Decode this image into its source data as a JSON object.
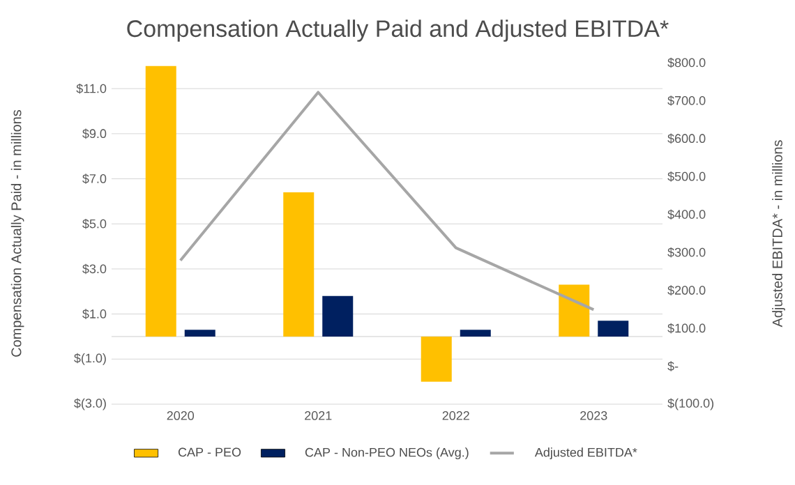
{
  "chart_data": {
    "type": "bar",
    "title": "Compensation Actually Paid and Adjusted EBITDA*",
    "ylabel": "Compensation  Actually Paid - in millions",
    "y2label": "Adjusted EBITDA* - in millions",
    "categories": [
      "2020",
      "2021",
      "2022",
      "2023"
    ],
    "series": [
      {
        "name": "CAP - PEO",
        "type": "bar",
        "color": "#ffc000",
        "values": [
          12.0,
          6.4,
          -2.0,
          2.3
        ]
      },
      {
        "name": "CAP - Non-PEO NEOs (Avg.)",
        "type": "bar",
        "color": "#002060",
        "values": [
          0.3,
          1.8,
          0.3,
          0.7
        ]
      },
      {
        "name": "Adjusted EBITDA*",
        "type": "line",
        "axis": "y2",
        "color": "#a6a6a6",
        "values": [
          279,
          722,
          312,
          149
        ]
      }
    ],
    "ylim": [
      -3,
      12.15
    ],
    "yticks": [
      {
        "value": -3,
        "label": "$(3.0)"
      },
      {
        "value": -1,
        "label": "$(1.0)"
      },
      {
        "value": 1,
        "label": "$1.0"
      },
      {
        "value": 3,
        "label": "$3.0"
      },
      {
        "value": 5,
        "label": "$5.0"
      },
      {
        "value": 7,
        "label": "$7.0"
      },
      {
        "value": 9,
        "label": "$9.0"
      },
      {
        "value": 11,
        "label": "$11.0"
      }
    ],
    "y2lim": [
      -100,
      800
    ],
    "y2ticks": [
      {
        "value": -100,
        "label": "$(100.0)"
      },
      {
        "value": 0,
        "label": "$-"
      },
      {
        "value": 100,
        "label": "$100.0"
      },
      {
        "value": 200,
        "label": "$200.0"
      },
      {
        "value": 300,
        "label": "$300.0"
      },
      {
        "value": 400,
        "label": "$400.0"
      },
      {
        "value": 500,
        "label": "$500.0"
      },
      {
        "value": 600,
        "label": "$600.0"
      },
      {
        "value": 700,
        "label": "$700.0"
      },
      {
        "value": 800,
        "label": "$800.0"
      }
    ],
    "grid": "y",
    "legend": "bottom",
    "marker": "none",
    "line_style": "solid"
  }
}
